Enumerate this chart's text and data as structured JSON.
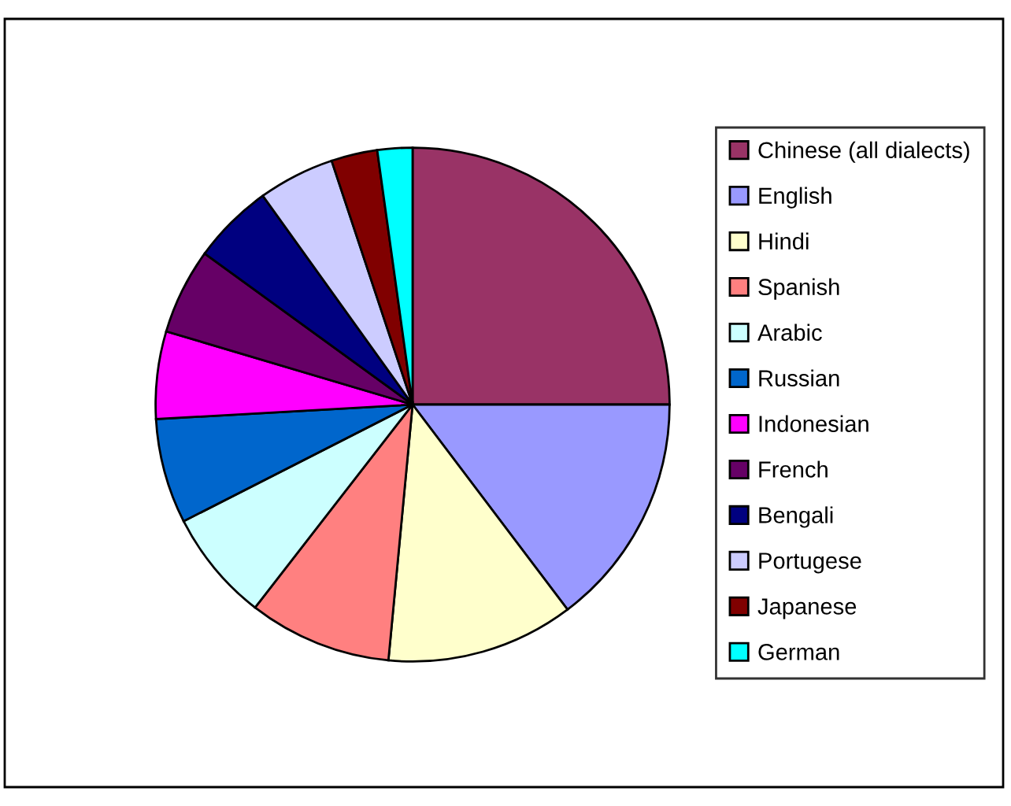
{
  "chart_data": {
    "type": "pie",
    "categories": [
      "Chinese (all dialects)",
      "English",
      "Hindi",
      "Spanish",
      "Arabic",
      "Russian",
      "Indonesian",
      "French",
      "Bengali",
      "Portugese",
      "Japanese",
      "German"
    ],
    "values": [
      25,
      14.7,
      11.8,
      9.0,
      7.0,
      6.6,
      5.5,
      5.4,
      5.1,
      4.8,
      2.9,
      2.2
    ],
    "colors": [
      "#993366",
      "#9999ff",
      "#ffffcc",
      "#ff8080",
      "#ccffff",
      "#0066cc",
      "#ff00ff",
      "#660066",
      "#000080",
      "#ccccff",
      "#800000",
      "#00ffff"
    ],
    "legend": "right"
  }
}
